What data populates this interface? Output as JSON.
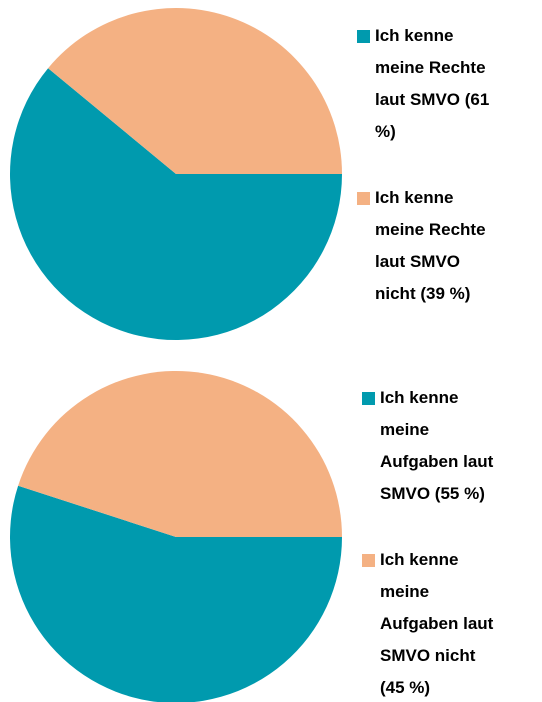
{
  "chart_data": [
    {
      "type": "pie",
      "series": [
        {
          "name": "Ich kenne meine Rechte laut SMVO (61 %)",
          "color": "#009aae",
          "values": [
            61
          ]
        },
        {
          "name": "Ich kenne meine Rechte laut SMVO nicht (39 %)",
          "color": "#f4b183",
          "values": [
            39
          ]
        }
      ]
    },
    {
      "type": "pie",
      "series": [
        {
          "name": "Ich kenne meine Aufgaben laut SMVO (55 %)",
          "color": "#009aae",
          "values": [
            55
          ]
        },
        {
          "name": "Ich kenne meine Aufgaben laut SMVO nicht (45 %)",
          "color": "#f4b183",
          "values": [
            45
          ]
        }
      ]
    }
  ]
}
